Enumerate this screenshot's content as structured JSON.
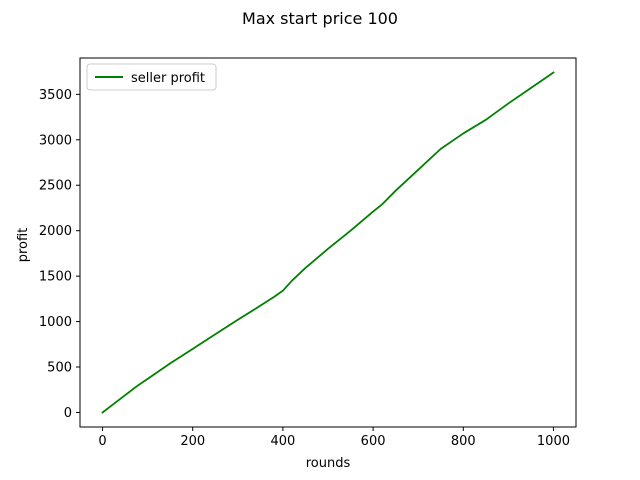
{
  "chart_data": {
    "type": "line",
    "title": "Max start price 100",
    "xlabel": "rounds",
    "ylabel": "profit",
    "xlim": [
      -50,
      1050
    ],
    "ylim": [
      -160,
      3900
    ],
    "xticks": [
      0,
      200,
      400,
      600,
      800,
      1000
    ],
    "yticks": [
      0,
      500,
      1000,
      1500,
      2000,
      2500,
      3000,
      3500
    ],
    "grid": false,
    "legend": "top-left",
    "series": [
      {
        "name": "seller profit",
        "color": "#008000",
        "x": [
          0,
          25,
          50,
          75,
          100,
          150,
          200,
          250,
          300,
          350,
          380,
          400,
          420,
          450,
          500,
          550,
          600,
          620,
          650,
          700,
          750,
          800,
          850,
          900,
          950,
          1000
        ],
        "y": [
          0,
          95,
          190,
          285,
          370,
          540,
          700,
          860,
          1020,
          1175,
          1270,
          1340,
          1450,
          1590,
          1800,
          2000,
          2210,
          2290,
          2440,
          2670,
          2900,
          3070,
          3220,
          3400,
          3570,
          3740
        ]
      }
    ]
  }
}
